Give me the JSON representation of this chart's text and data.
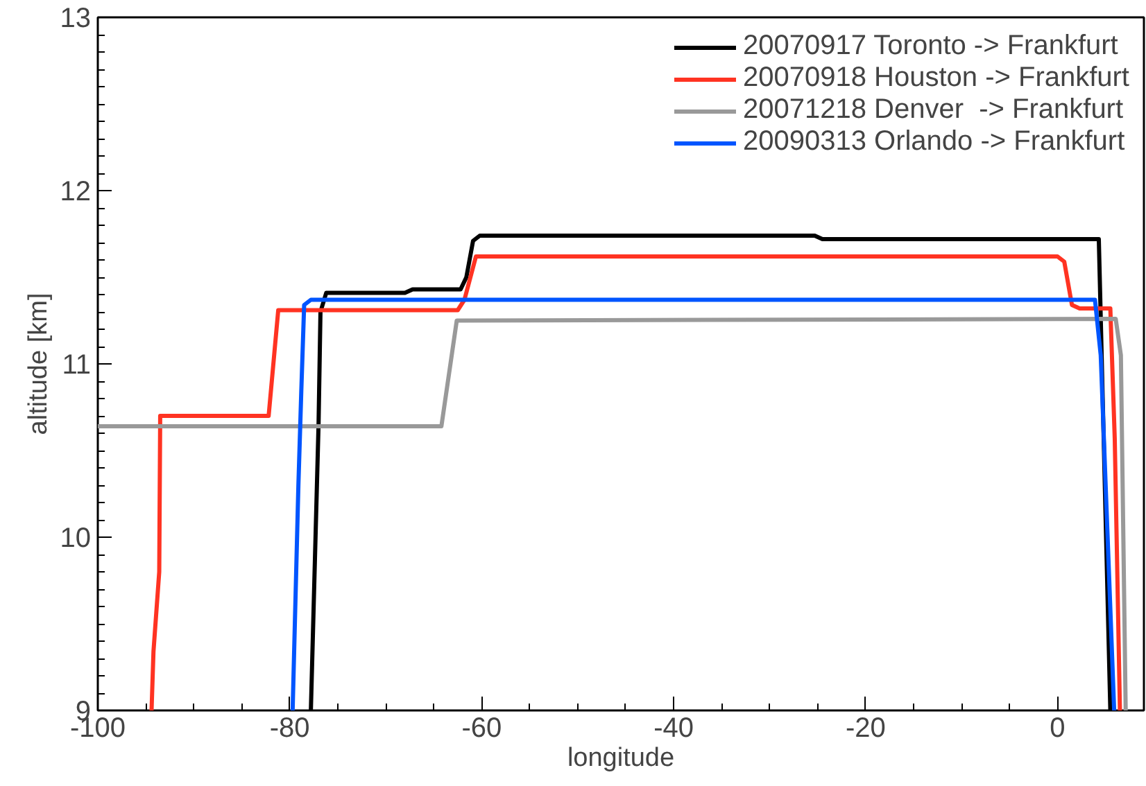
{
  "chart_data": {
    "type": "line",
    "xlabel": "longitude",
    "ylabel": "altitude [km]",
    "xlim": [
      -100,
      9
    ],
    "ylim": [
      9,
      13
    ],
    "xticks": [
      -100,
      -80,
      -60,
      -40,
      -20,
      0
    ],
    "yticks": [
      9,
      10,
      11,
      12,
      13
    ],
    "grid": false,
    "legend": "top right",
    "marker": "none",
    "line_style": "solid",
    "series": [
      {
        "name": "20070917 Toronto -> Frankfurt",
        "color": "#000000",
        "x": [
          -77.8,
          -77.0,
          -76.8,
          -76.2,
          -68.0,
          -67.2,
          -62.2,
          -61.6,
          -60.9,
          -60.2,
          -25.3,
          -24.5,
          4.3,
          5.5
        ],
        "values": [
          9,
          10.65,
          11.3,
          11.41,
          11.41,
          11.43,
          11.43,
          11.5,
          11.71,
          11.74,
          11.74,
          11.72,
          11.72,
          9
        ]
      },
      {
        "name": "20070918 Houston -> Frankfurt",
        "color": "#ff3322",
        "x": [
          -94.4,
          -94.2,
          -93.6,
          -93.5,
          -82.2,
          -81.2,
          -62.5,
          -61.8,
          -60.6,
          0,
          0.7,
          1.5,
          2.3,
          5.5,
          5.96,
          6.5
        ],
        "values": [
          9,
          9.34,
          9.8,
          10.7,
          10.7,
          11.31,
          11.31,
          11.37,
          11.62,
          11.62,
          11.59,
          11.34,
          11.32,
          11.32,
          10.57,
          9
        ]
      },
      {
        "name": "20071218 Denver  -> Frankfurt",
        "color": "#999999",
        "x": [
          -100,
          -64.2,
          -62.6,
          6.06,
          6.6,
          7.1
        ],
        "values": [
          10.64,
          10.64,
          11.25,
          11.26,
          11.05,
          9
        ]
      },
      {
        "name": "20090313 Orlando -> Frankfurt",
        "color": "#0055ff",
        "x": [
          -79.7,
          -79.1,
          -78.8,
          -78.5,
          -77.8,
          3.9,
          4.5,
          5.9
        ],
        "values": [
          9,
          10.3,
          10.84,
          11.34,
          11.37,
          11.37,
          11.05,
          9
        ]
      }
    ]
  }
}
